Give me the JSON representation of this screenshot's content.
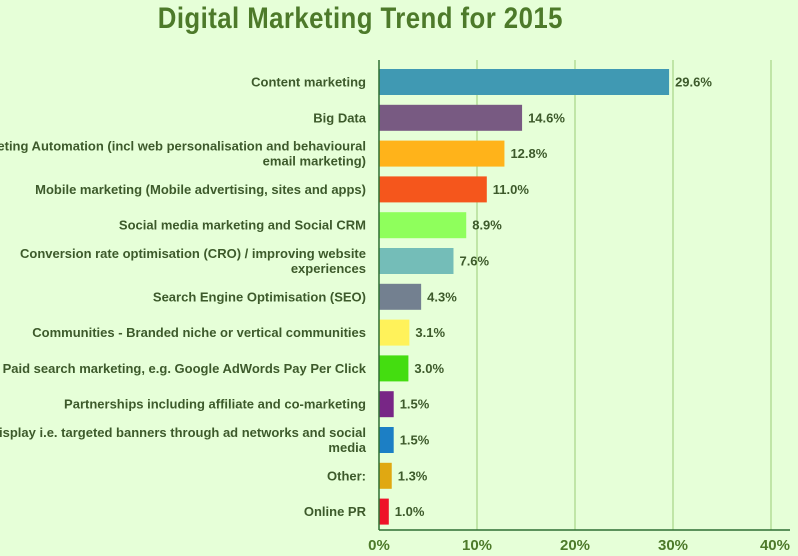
{
  "chart_data": {
    "type": "bar",
    "orientation": "horizontal",
    "title": "Digital Marketing Trend for 2015",
    "categories": [
      [
        "Content marketing"
      ],
      [
        "Big Data"
      ],
      [
        "Marketing Automation (incl web personalisation and behavioural",
        "email marketing)"
      ],
      [
        "Mobile marketing (Mobile advertising, sites and apps)"
      ],
      [
        "Social media marketing and Social CRM"
      ],
      [
        "Conversion rate optimisation (CRO) / improving website",
        "experiences"
      ],
      [
        "Search Engine Optimisation (SEO)"
      ],
      [
        "Communities - Branded niche or vertical communities"
      ],
      [
        "Paid search marketing, e.g. Google AdWords Pay Per Click"
      ],
      [
        "Partnerships including affiliate and co-marketing"
      ],
      [
        "Display i.e. targeted banners through ad networks and social",
        "media"
      ],
      [
        "Other:"
      ],
      [
        "Online PR"
      ]
    ],
    "values": [
      29.6,
      14.6,
      12.8,
      11.0,
      8.9,
      7.6,
      4.3,
      3.1,
      3.0,
      1.5,
      1.5,
      1.3,
      1.0
    ],
    "value_labels": [
      "29.6%",
      "14.6%",
      "12.8%",
      "11.0%",
      "8.9%",
      "7.6%",
      "4.3%",
      "3.1%",
      "3.0%",
      "1.5%",
      "1.5%",
      "1.3%",
      "1.0%"
    ],
    "colors": [
      "#4099b3",
      "#785a82",
      "#ffb31a",
      "#f5561c",
      "#8fff5c",
      "#74bdb8",
      "#738090",
      "#fff25a",
      "#44dd10",
      "#782686",
      "#1c7fc5",
      "#e0a812",
      "#ee1228"
    ],
    "xlim": [
      0,
      40
    ],
    "xticks": [
      0,
      10,
      20,
      30,
      40
    ],
    "xtick_labels": [
      "0%",
      "10%",
      "20%",
      "30%",
      "40%"
    ],
    "grid": true,
    "gridline_color": "#a7d487",
    "axis_color": "#2f6e32"
  }
}
